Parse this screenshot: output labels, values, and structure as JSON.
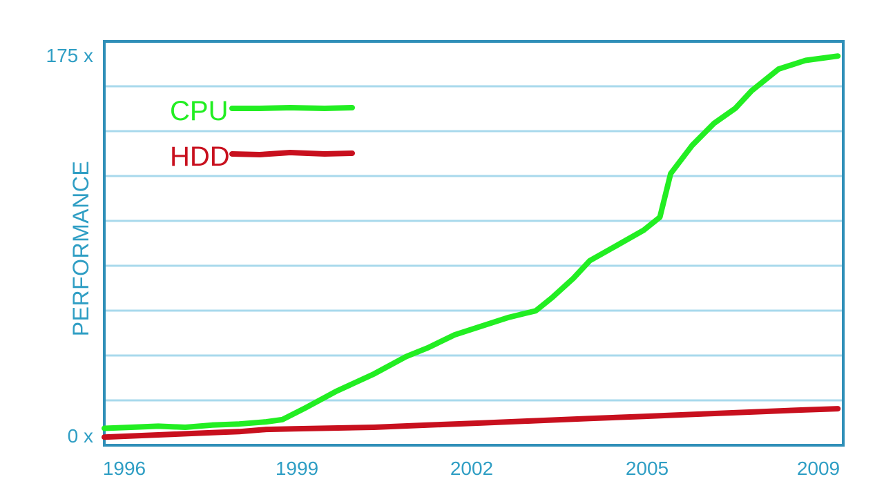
{
  "chart_data": {
    "type": "line",
    "ylabel": "PERFORMANCE",
    "y_tick_labels": [
      "175 x",
      "0 x"
    ],
    "x_tick_labels": [
      "1996",
      "1999",
      "2002",
      "2005",
      "2009"
    ],
    "xlim": [
      1996,
      2009.7
    ],
    "ylim": [
      0,
      175
    ],
    "grid": true,
    "legend_position": "top-left",
    "series": [
      {
        "name": "CPU",
        "color": "#22ee22",
        "points": [
          [
            1996.0,
            3
          ],
          [
            1996.5,
            3.5
          ],
          [
            1997.0,
            4
          ],
          [
            1997.5,
            3.5
          ],
          [
            1998.0,
            4.5
          ],
          [
            1998.5,
            5
          ],
          [
            1999.0,
            6
          ],
          [
            1999.3,
            7
          ],
          [
            1999.7,
            12
          ],
          [
            2000.3,
            20
          ],
          [
            2001.0,
            28
          ],
          [
            2001.6,
            36
          ],
          [
            2002.0,
            40
          ],
          [
            2002.5,
            46
          ],
          [
            2003.0,
            50
          ],
          [
            2003.5,
            54
          ],
          [
            2004.0,
            57
          ],
          [
            2004.3,
            63
          ],
          [
            2004.7,
            72
          ],
          [
            2005.0,
            80
          ],
          [
            2005.5,
            87
          ],
          [
            2006.0,
            94
          ],
          [
            2006.3,
            100
          ],
          [
            2006.5,
            120
          ],
          [
            2006.9,
            133
          ],
          [
            2007.3,
            143
          ],
          [
            2007.7,
            150
          ],
          [
            2008.0,
            158
          ],
          [
            2008.5,
            168
          ],
          [
            2009.0,
            172
          ],
          [
            2009.6,
            174
          ]
        ]
      },
      {
        "name": "HDD",
        "color": "#c8101e",
        "points": [
          [
            1996.0,
            -1
          ],
          [
            1996.5,
            -0.5
          ],
          [
            1997.0,
            0
          ],
          [
            1997.5,
            0.5
          ],
          [
            1998.0,
            1
          ],
          [
            1998.5,
            1.5
          ],
          [
            1999.0,
            2.5
          ],
          [
            1999.5,
            2.8
          ],
          [
            2000.0,
            3
          ],
          [
            2001.0,
            3.5
          ],
          [
            2002.0,
            4.5
          ],
          [
            2003.0,
            5.5
          ],
          [
            2004.0,
            6.5
          ],
          [
            2005.0,
            7.5
          ],
          [
            2006.0,
            8.5
          ],
          [
            2007.0,
            9.5
          ],
          [
            2008.0,
            10.5
          ],
          [
            2009.0,
            11.5
          ],
          [
            2009.6,
            12
          ]
        ]
      }
    ]
  }
}
